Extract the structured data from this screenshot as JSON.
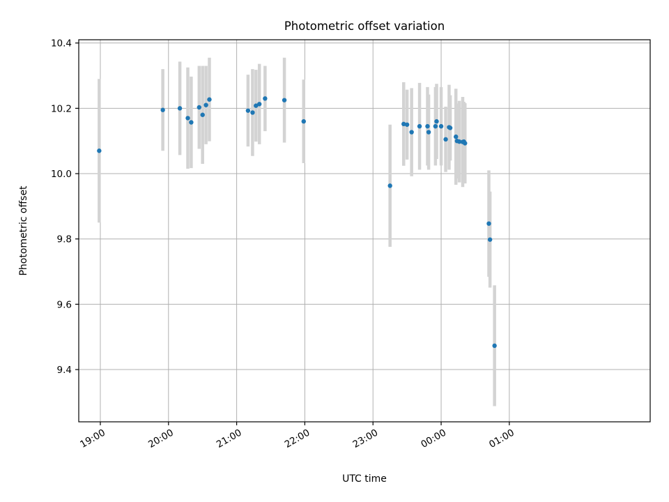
{
  "chart_data": {
    "type": "scatter",
    "title": "Photometric offset variation",
    "xlabel": "UTC time",
    "ylabel": "Photometric offset",
    "x_tick_labels": [
      "19:00",
      "20:00",
      "21:00",
      "22:00",
      "23:00",
      "00:00",
      "01:00"
    ],
    "y_tick_labels": [
      "9.4",
      "9.6",
      "9.8",
      "10.0",
      "10.2",
      "10.4"
    ],
    "x_axis_unit": "minutes after 19:00 UTC",
    "xlim": [
      -19,
      484
    ],
    "ylim": [
      9.24,
      10.41
    ],
    "grid": true,
    "colors": {
      "points": "#1f77b4",
      "error_bars": "#d3d3d3"
    },
    "x": [
      -1,
      55,
      70,
      77,
      80,
      87,
      90,
      93,
      96,
      130,
      134,
      137,
      140,
      145,
      162,
      179,
      255,
      267,
      270,
      274,
      281,
      288,
      289,
      295,
      296,
      300,
      304,
      307,
      308,
      313,
      314,
      316,
      319,
      320,
      321,
      342,
      343,
      347
    ],
    "y": [
      10.07,
      10.195,
      10.2,
      10.17,
      10.157,
      10.203,
      10.18,
      10.21,
      10.227,
      10.193,
      10.187,
      10.208,
      10.213,
      10.23,
      10.225,
      10.16,
      9.963,
      10.152,
      10.15,
      10.127,
      10.145,
      10.145,
      10.127,
      10.145,
      10.16,
      10.145,
      10.105,
      10.142,
      10.14,
      10.113,
      10.1,
      10.098,
      10.097,
      10.098,
      10.093,
      9.847,
      9.798,
      9.473
    ],
    "yerr": [
      0.22,
      0.125,
      0.143,
      0.155,
      0.14,
      0.127,
      0.15,
      0.12,
      0.128,
      0.11,
      0.133,
      0.11,
      0.123,
      0.1,
      0.13,
      0.128,
      0.187,
      0.128,
      0.107,
      0.135,
      0.133,
      0.12,
      0.115,
      0.12,
      0.115,
      0.12,
      0.1,
      0.13,
      0.1,
      0.147,
      0.115,
      0.125,
      0.138,
      0.122,
      0.123,
      0.163,
      0.147,
      0.185
    ]
  }
}
